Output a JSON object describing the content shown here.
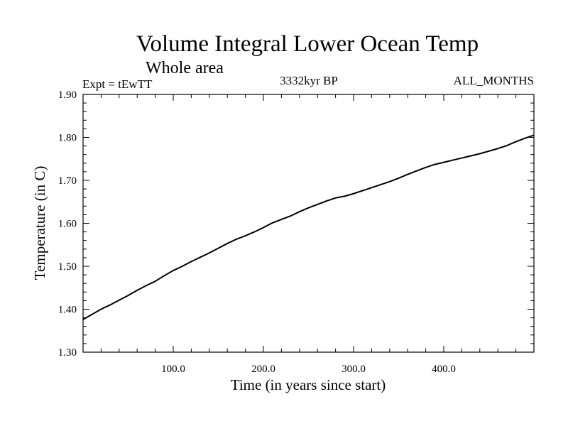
{
  "chart_data": {
    "type": "line",
    "title": "Volume Integral Lower Ocean Temp",
    "subtitle": "Whole area",
    "experiment": "Expt = tEwTT",
    "period": "3332kyr BP",
    "months": "ALL_MONTHS",
    "xlabel": "Time (in years since start)",
    "ylabel": "Temperature (in C)",
    "xlim": [
      0,
      500
    ],
    "ylim": [
      1.3,
      1.9
    ],
    "x_ticks": [
      100,
      200,
      300,
      400
    ],
    "x_tick_labels": [
      "100.0",
      "200.0",
      "300.0",
      "400.0"
    ],
    "y_ticks": [
      1.3,
      1.4,
      1.5,
      1.6,
      1.7,
      1.8,
      1.9
    ],
    "y_tick_labels": [
      "1.30",
      "1.40",
      "1.50",
      "1.60",
      "1.70",
      "1.80",
      "1.90"
    ],
    "grid": false,
    "series": [
      {
        "name": "Temperature",
        "x": [
          0,
          10,
          20,
          30,
          40,
          50,
          60,
          70,
          80,
          90,
          100,
          110,
          120,
          130,
          140,
          150,
          160,
          170,
          180,
          190,
          200,
          210,
          220,
          230,
          240,
          250,
          260,
          270,
          280,
          290,
          300,
          310,
          320,
          330,
          340,
          350,
          360,
          370,
          380,
          390,
          400,
          410,
          420,
          430,
          440,
          450,
          460,
          470,
          480,
          490,
          500
        ],
        "values": [
          1.376,
          1.388,
          1.4,
          1.41,
          1.421,
          1.432,
          1.444,
          1.455,
          1.465,
          1.478,
          1.49,
          1.5,
          1.511,
          1.521,
          1.531,
          1.542,
          1.553,
          1.563,
          1.571,
          1.58,
          1.59,
          1.601,
          1.609,
          1.617,
          1.627,
          1.636,
          1.644,
          1.652,
          1.659,
          1.663,
          1.669,
          1.676,
          1.683,
          1.69,
          1.697,
          1.705,
          1.714,
          1.722,
          1.73,
          1.737,
          1.742,
          1.747,
          1.752,
          1.757,
          1.762,
          1.768,
          1.774,
          1.781,
          1.79,
          1.798,
          1.805
        ]
      }
    ]
  }
}
